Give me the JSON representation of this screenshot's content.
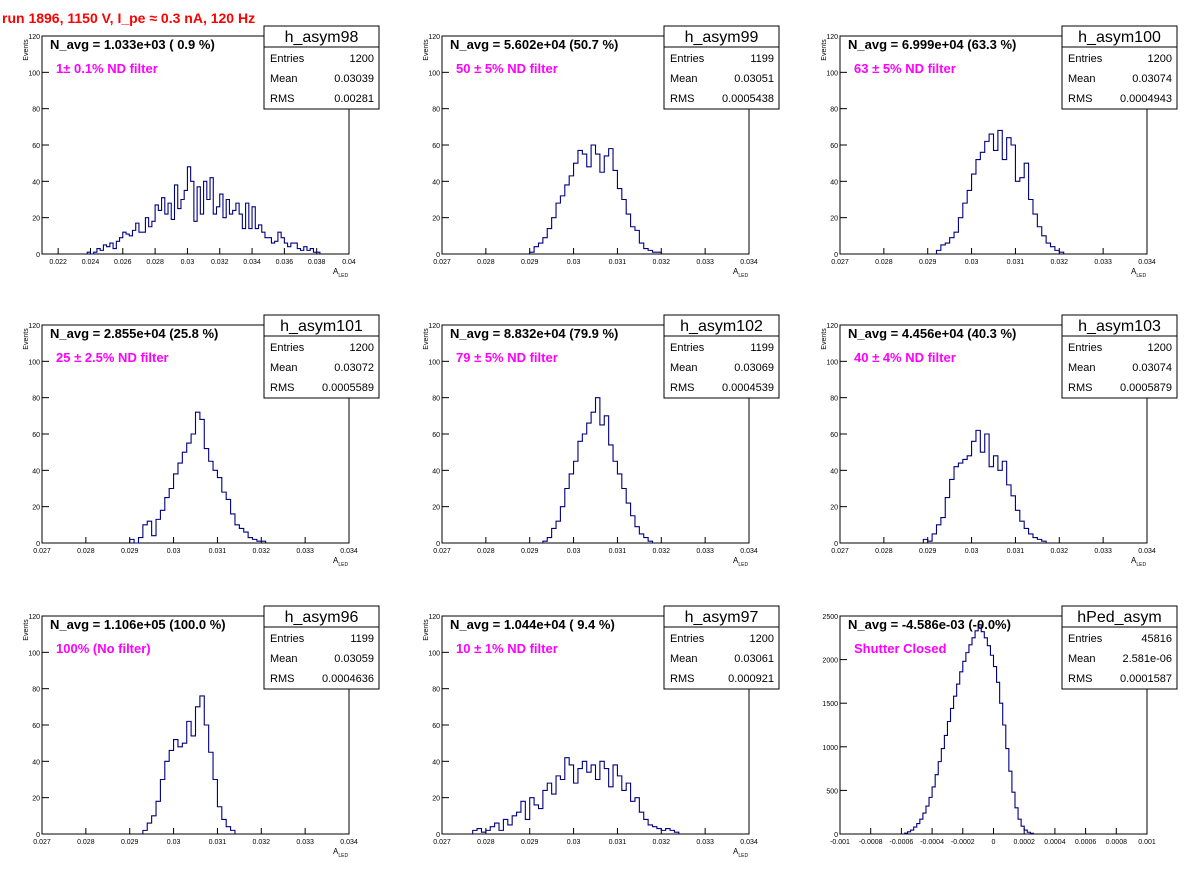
{
  "page_title": "run 1896,  1150 V, I_pe ≈ 0.3 nA, 120 Hz",
  "chart_data": [
    {
      "type": "bar",
      "name": "h_asym98",
      "stats": {
        "labels": [
          "Entries",
          "Mean",
          "RMS"
        ],
        "values": [
          "1200",
          "0.03039",
          "0.00281"
        ]
      },
      "navg_text": "N_avg = 1.033e+03 ( 0.9 %)",
      "filter_text": "1± 0.1% ND filter",
      "xlabel": "A",
      "xlabel_sub": "LED",
      "ylabel": "Events",
      "xlim": [
        0.021,
        0.04
      ],
      "ylim": [
        0,
        120
      ],
      "xticks": [
        0.022,
        0.024,
        0.026,
        0.028,
        0.03,
        0.032,
        0.034,
        0.036,
        0.038,
        0.04
      ],
      "xtick_labels": [
        "0.022",
        "0.024",
        "0.026",
        "0.028",
        "0.03",
        "0.032",
        "0.034",
        "0.036",
        "0.038",
        "0.04"
      ],
      "yticks": [
        0,
        20,
        40,
        60,
        80,
        100,
        120
      ],
      "ytick_labels": [
        "0",
        "20",
        "40",
        "60",
        "80",
        "100",
        "120"
      ],
      "x_start": 0.0238,
      "bin_width": 0.0002,
      "values": [
        1,
        0,
        1,
        3,
        2,
        5,
        4,
        6,
        3,
        7,
        9,
        12,
        11,
        10,
        13,
        17,
        12,
        12,
        20,
        15,
        18,
        27,
        24,
        31,
        22,
        28,
        19,
        38,
        25,
        30,
        35,
        48,
        40,
        18,
        37,
        22,
        40,
        30,
        42,
        22,
        26,
        33,
        20,
        30,
        22,
        24,
        28,
        22,
        14,
        28,
        14,
        26,
        14,
        16,
        12,
        9,
        9,
        6,
        7,
        12,
        9,
        6,
        4,
        6,
        6,
        3,
        2,
        4,
        2,
        3,
        1,
        1
      ]
    },
    {
      "type": "bar",
      "name": "h_asym99",
      "stats": {
        "labels": [
          "Entries",
          "Mean",
          "RMS"
        ],
        "values": [
          "1199",
          "0.03051",
          "0.0005438"
        ]
      },
      "navg_text": "N_avg = 5.602e+04 (50.7 %)",
      "filter_text": "50 ± 5% ND filter",
      "xlabel": "A",
      "xlabel_sub": "LED",
      "ylabel": "Events",
      "xlim": [
        0.027,
        0.034
      ],
      "ylim": [
        0,
        120
      ],
      "xticks": [
        0.027,
        0.028,
        0.029,
        0.03,
        0.031,
        0.032,
        0.033,
        0.034
      ],
      "xtick_labels": [
        "0.027",
        "0.028",
        "0.029",
        "0.03",
        "0.031",
        "0.032",
        "0.033",
        "0.034"
      ],
      "yticks": [
        0,
        20,
        40,
        60,
        80,
        100,
        120
      ],
      "ytick_labels": [
        "0",
        "20",
        "40",
        "60",
        "80",
        "100",
        "120"
      ],
      "x_start": 0.029,
      "bin_width": 0.0001,
      "values": [
        1,
        4,
        6,
        9,
        14,
        20,
        28,
        32,
        38,
        43,
        50,
        57,
        55,
        48,
        60,
        55,
        45,
        54,
        58,
        46,
        36,
        30,
        22,
        15,
        13,
        6,
        3,
        2,
        1,
        1
      ]
    },
    {
      "type": "bar",
      "name": "h_asym100",
      "stats": {
        "labels": [
          "Entries",
          "Mean",
          "RMS"
        ],
        "values": [
          "1200",
          "0.03074",
          "0.0004943"
        ]
      },
      "navg_text": "N_avg = 6.999e+04 (63.3 %)",
      "filter_text": "63 ± 5% ND filter",
      "xlabel": "A",
      "xlabel_sub": "LED",
      "ylabel": "Events",
      "xlim": [
        0.027,
        0.034
      ],
      "ylim": [
        0,
        120
      ],
      "xticks": [
        0.027,
        0.028,
        0.029,
        0.03,
        0.031,
        0.032,
        0.033,
        0.034
      ],
      "xtick_labels": [
        "0.027",
        "0.028",
        "0.029",
        "0.03",
        "0.031",
        "0.032",
        "0.033",
        "0.034"
      ],
      "yticks": [
        0,
        20,
        40,
        60,
        80,
        100,
        120
      ],
      "ytick_labels": [
        "0",
        "20",
        "40",
        "60",
        "80",
        "100",
        "120"
      ],
      "x_start": 0.0292,
      "bin_width": 0.0001,
      "values": [
        2,
        5,
        6,
        9,
        12,
        20,
        28,
        35,
        44,
        52,
        56,
        62,
        66,
        57,
        68,
        52,
        64,
        60,
        40,
        42,
        50,
        30,
        22,
        15,
        10,
        6,
        4,
        2,
        1
      ]
    },
    {
      "type": "bar",
      "name": "h_asym101",
      "stats": {
        "labels": [
          "Entries",
          "Mean",
          "RMS"
        ],
        "values": [
          "1200",
          "0.03072",
          "0.0005589"
        ]
      },
      "navg_text": "N_avg = 2.855e+04 (25.8 %)",
      "filter_text": "25 ± 2.5% ND filter",
      "xlabel": "A",
      "xlabel_sub": "LED",
      "ylabel": "Events",
      "xlim": [
        0.027,
        0.034
      ],
      "ylim": [
        0,
        120
      ],
      "xticks": [
        0.027,
        0.028,
        0.029,
        0.03,
        0.031,
        0.032,
        0.033,
        0.034
      ],
      "xtick_labels": [
        "0.027",
        "0.028",
        "0.029",
        "0.03",
        "0.031",
        "0.032",
        "0.033",
        "0.034"
      ],
      "yticks": [
        0,
        20,
        40,
        60,
        80,
        100,
        120
      ],
      "ytick_labels": [
        "0",
        "20",
        "40",
        "60",
        "80",
        "100",
        "120"
      ],
      "x_start": 0.029,
      "bin_width": 0.0001,
      "values": [
        2,
        0,
        3,
        10,
        12,
        4,
        13,
        18,
        25,
        30,
        38,
        44,
        50,
        55,
        60,
        72,
        68,
        52,
        45,
        40,
        36,
        28,
        24,
        16,
        10,
        8,
        6,
        3,
        2,
        1,
        1
      ]
    },
    {
      "type": "bar",
      "name": "h_asym102",
      "stats": {
        "labels": [
          "Entries",
          "Mean",
          "RMS"
        ],
        "values": [
          "1199",
          "0.03069",
          "0.0004539"
        ]
      },
      "navg_text": "N_avg = 8.832e+04 (79.9 %)",
      "filter_text": "79 ± 5% ND filter",
      "xlabel": "A",
      "xlabel_sub": "LED",
      "ylabel": "Events",
      "xlim": [
        0.027,
        0.034
      ],
      "ylim": [
        0,
        120
      ],
      "xticks": [
        0.027,
        0.028,
        0.029,
        0.03,
        0.031,
        0.032,
        0.033,
        0.034
      ],
      "xtick_labels": [
        "0.027",
        "0.028",
        "0.029",
        "0.03",
        "0.031",
        "0.032",
        "0.033",
        "0.034"
      ],
      "yticks": [
        0,
        20,
        40,
        60,
        80,
        100,
        120
      ],
      "ytick_labels": [
        "0",
        "20",
        "40",
        "60",
        "80",
        "100",
        "120"
      ],
      "x_start": 0.0293,
      "bin_width": 0.0001,
      "values": [
        1,
        3,
        8,
        12,
        20,
        30,
        38,
        45,
        56,
        60,
        66,
        72,
        80,
        65,
        70,
        54,
        45,
        38,
        30,
        22,
        15,
        9,
        5,
        3,
        1
      ]
    },
    {
      "type": "bar",
      "name": "h_asym103",
      "stats": {
        "labels": [
          "Entries",
          "Mean",
          "RMS"
        ],
        "values": [
          "1200",
          "0.03074",
          "0.0005879"
        ]
      },
      "navg_text": "N_avg = 4.456e+04 (40.3 %)",
      "filter_text": "40 ± 4% ND filter",
      "xlabel": "A",
      "xlabel_sub": "LED",
      "ylabel": "Events",
      "xlim": [
        0.027,
        0.034
      ],
      "ylim": [
        0,
        120
      ],
      "xticks": [
        0.027,
        0.028,
        0.029,
        0.03,
        0.031,
        0.032,
        0.033,
        0.034
      ],
      "xtick_labels": [
        "0.027",
        "0.028",
        "0.029",
        "0.03",
        "0.031",
        "0.032",
        "0.033",
        "0.034"
      ],
      "yticks": [
        0,
        20,
        40,
        60,
        80,
        100,
        120
      ],
      "ytick_labels": [
        "0",
        "20",
        "40",
        "60",
        "80",
        "100",
        "120"
      ],
      "x_start": 0.0289,
      "bin_width": 0.0001,
      "values": [
        2,
        1,
        5,
        10,
        14,
        25,
        35,
        42,
        44,
        46,
        48,
        56,
        62,
        50,
        60,
        42,
        48,
        40,
        45,
        32,
        26,
        18,
        12,
        8,
        5,
        3,
        2,
        1
      ]
    },
    {
      "type": "bar",
      "name": "h_asym96",
      "stats": {
        "labels": [
          "Entries",
          "Mean",
          "RMS"
        ],
        "values": [
          "1199",
          "0.03059",
          "0.0004636"
        ]
      },
      "navg_text": "N_avg = 1.106e+05 (100.0 %)",
      "filter_text": "100% (No filter)",
      "xlabel": "A",
      "xlabel_sub": "LED",
      "ylabel": "Events",
      "xlim": [
        0.027,
        0.034
      ],
      "ylim": [
        0,
        120
      ],
      "xticks": [
        0.027,
        0.028,
        0.029,
        0.03,
        0.031,
        0.032,
        0.033,
        0.034
      ],
      "xtick_labels": [
        "0.027",
        "0.028",
        "0.029",
        "0.03",
        "0.031",
        "0.032",
        "0.033",
        "0.034"
      ],
      "yticks": [
        0,
        20,
        40,
        60,
        80,
        100,
        120
      ],
      "ytick_labels": [
        "0",
        "20",
        "40",
        "60",
        "80",
        "100",
        "120"
      ],
      "x_start": 0.0293,
      "bin_width": 0.0001,
      "values": [
        2,
        6,
        10,
        18,
        30,
        40,
        46,
        52,
        48,
        50,
        62,
        54,
        70,
        76,
        60,
        45,
        30,
        15,
        8,
        4,
        2
      ]
    },
    {
      "type": "bar",
      "name": "h_asym97",
      "stats": {
        "labels": [
          "Entries",
          "Mean",
          "RMS"
        ],
        "values": [
          "1200",
          "0.03061",
          "0.000921"
        ]
      },
      "navg_text": "N_avg = 1.044e+04 ( 9.4 %)",
      "filter_text": "10 ± 1% ND filter",
      "xlabel": "A",
      "xlabel_sub": "LED",
      "ylabel": "Events",
      "xlim": [
        0.027,
        0.034
      ],
      "ylim": [
        0,
        120
      ],
      "xticks": [
        0.027,
        0.028,
        0.029,
        0.03,
        0.031,
        0.032,
        0.033,
        0.034
      ],
      "xtick_labels": [
        "0.027",
        "0.028",
        "0.029",
        "0.03",
        "0.031",
        "0.032",
        "0.033",
        "0.034"
      ],
      "yticks": [
        0,
        20,
        40,
        60,
        80,
        100,
        120
      ],
      "ytick_labels": [
        "0",
        "20",
        "40",
        "60",
        "80",
        "100",
        "120"
      ],
      "x_start": 0.0277,
      "bin_width": 0.0001,
      "values": [
        2,
        3,
        1,
        2,
        4,
        6,
        2,
        8,
        5,
        10,
        12,
        18,
        8,
        20,
        16,
        14,
        24,
        28,
        22,
        32,
        30,
        42,
        38,
        28,
        36,
        40,
        34,
        38,
        30,
        40,
        36,
        26,
        38,
        32,
        24,
        28,
        18,
        20,
        12,
        8,
        5,
        4,
        3,
        2,
        3,
        2,
        1
      ]
    },
    {
      "type": "bar",
      "name": "hPed_asym",
      "stats": {
        "labels": [
          "Entries",
          "Mean",
          "RMS"
        ],
        "values": [
          "45816",
          "2.581e-06",
          "0.0001587"
        ]
      },
      "navg_text": "N_avg = -4.586e-03 (-0.0%)",
      "filter_text": "Shutter Closed",
      "xlabel": "",
      "xlabel_sub": "",
      "ylabel": "",
      "xlim": [
        -0.001,
        0.001
      ],
      "ylim": [
        0,
        2500
      ],
      "xticks": [
        -0.001,
        -0.0008,
        -0.0006,
        -0.0004,
        -0.0002,
        0,
        0.0002,
        0.0004,
        0.0006,
        0.0008,
        0.001
      ],
      "xtick_labels": [
        "-0.001",
        "-0.0008",
        "-0.0006",
        "-0.0004",
        "-0.0002",
        "0",
        "0.0002",
        "0.0004",
        "0.0006",
        "0.0008",
        "0.001"
      ],
      "yticks": [
        0,
        500,
        1000,
        1500,
        2000,
        2500
      ],
      "ytick_labels": [
        "0",
        "500",
        "1000",
        "1500",
        "2000",
        "2500"
      ],
      "x_start": -0.00058,
      "bin_width": 2e-05,
      "values": [
        10,
        25,
        45,
        80,
        120,
        170,
        240,
        320,
        420,
        540,
        680,
        830,
        980,
        1130,
        1290,
        1440,
        1580,
        1720,
        1860,
        1980,
        2080,
        2170,
        2250,
        2330,
        2400,
        2320,
        2250,
        2160,
        2050,
        1920,
        1740,
        1500,
        1250,
        980,
        720,
        480,
        300,
        170,
        90,
        45,
        20,
        8
      ]
    }
  ]
}
